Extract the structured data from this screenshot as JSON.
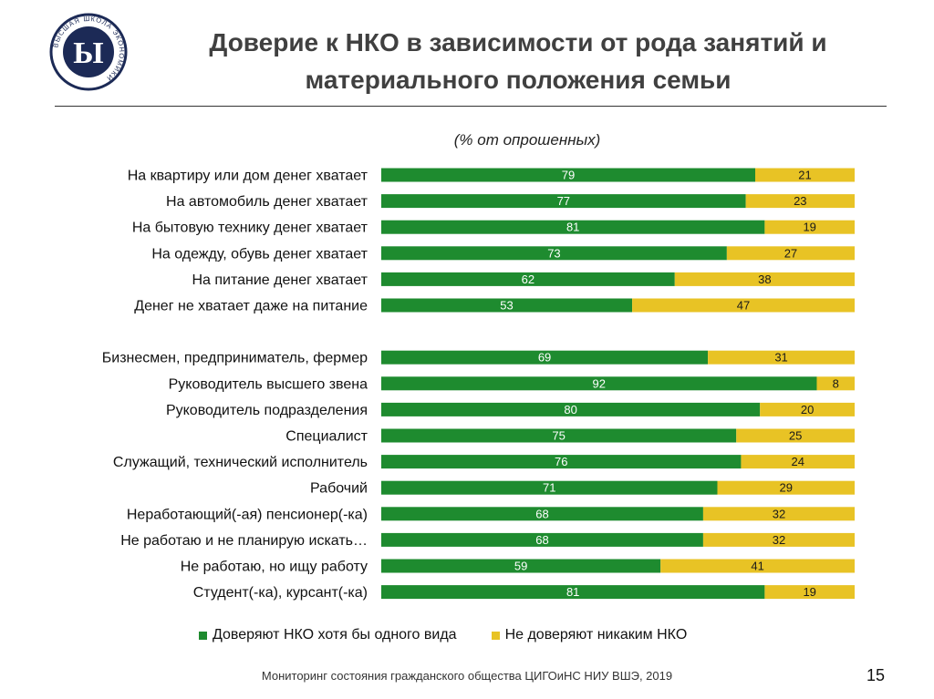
{
  "header": {
    "title_line1": "Доверие к НКО в зависимости от рода занятий и",
    "title_line2": "материального положения семьи",
    "subtitle": "(% от опрошенных)"
  },
  "logo": {
    "name": "hse-logo",
    "text": "ВЫСШАЯ ШКОЛА ЭКОНОМИКИ",
    "monogram": "Ы"
  },
  "colors": {
    "trust": "#1e8b2f",
    "distrust": "#e8c325",
    "trust_label": "#ffffff",
    "distrust_label": "#1a1a1a"
  },
  "chart_data": {
    "type": "bar",
    "orientation": "horizontal",
    "stacked": true,
    "normalized_total": 100,
    "xlim": [
      0,
      100
    ],
    "grid": false,
    "title": "Доверие к НКО в зависимости от рода занятий и материального положения семьи",
    "subtitle": "(% от опрошенных)",
    "categories": [
      "На квартиру или дом денег хватает",
      "На автомобиль денег хватает",
      "На бытовую технику денег хватает",
      "На одежду, обувь денег хватает",
      "На питание денег хватает",
      "Денег не хватает даже на питание",
      "Бизнесмен, предприниматель, фермер",
      "Руководитель высшего звена",
      "Руководитель подразделения",
      "Специалист",
      "Служащий, технический исполнитель",
      "Рабочий",
      "Неработающий(-ая) пенсионер(-ка)",
      "Не работаю и не планирую искать…",
      "Не работаю, но ищу работу",
      "Студент(-ка), курсант(-ка)"
    ],
    "groups": [
      {
        "name": "material",
        "start": 0,
        "count": 6
      },
      {
        "name": "occupation",
        "start": 6,
        "count": 10
      }
    ],
    "series": [
      {
        "name": "Доверяют НКО хотя бы одного вида",
        "color": "#1e8b2f",
        "values": [
          79,
          77,
          81,
          73,
          62,
          53,
          69,
          92,
          80,
          75,
          76,
          71,
          68,
          68,
          59,
          81
        ]
      },
      {
        "name": "Не доверяют никаким НКО",
        "color": "#e8c325",
        "values": [
          21,
          23,
          19,
          27,
          38,
          47,
          31,
          8,
          20,
          25,
          24,
          29,
          32,
          32,
          41,
          19
        ]
      }
    ],
    "legend_position": "bottom"
  },
  "footer": {
    "source": "Мониторинг состояния гражданского общества ЦИГОиНС НИУ ВШЭ, 2019",
    "page": "15"
  }
}
